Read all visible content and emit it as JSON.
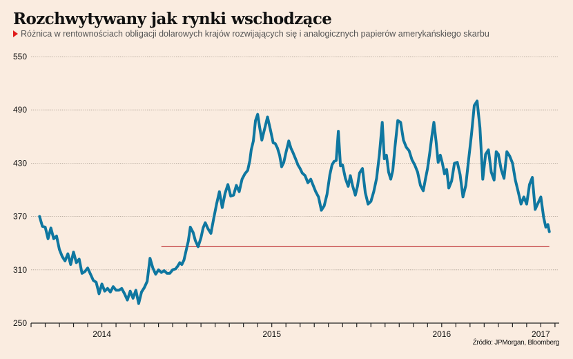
{
  "header": {
    "title": "Rozchwytywany jak rynki wschodzące",
    "subtitle": "Różnica w rentownościach obligacji dolarowych krajów rozwijających się i analogicznych papierów amerykańskiego skarbu",
    "source": "Źródło: JPMorgan, Bloomberg"
  },
  "colors": {
    "background": "#faece0",
    "line": "#0f77a0",
    "reference_line": "#c0393b",
    "marker": "#e01b1b"
  },
  "chart_data": {
    "type": "line",
    "title": "Rozchwytywany jak rynki wschodzące",
    "subtitle": "Różnica w rentownościach obligacji dolarowych krajów rozwijających się i analogicznych papierów amerykańskiego skarbu",
    "xlabel": "",
    "ylabel": "",
    "ylim": [
      250,
      550
    ],
    "yticks": [
      250,
      310,
      370,
      430,
      490,
      550
    ],
    "ytick_labels": [
      "250",
      "310",
      "370",
      "430",
      "490",
      "550"
    ],
    "xlim_months": [
      0,
      37.2
    ],
    "xticks_years": [
      {
        "label": "2014",
        "month": 5
      },
      {
        "label": "2015",
        "month": 17
      },
      {
        "label": "2016",
        "month": 29
      },
      {
        "label": "2017",
        "month": 36
      }
    ],
    "grid": "horizontal-dotted",
    "reference_line": {
      "value": 336,
      "from_month": 9.2,
      "to_month": 36.6
    },
    "series": [
      {
        "name": "Spread (pb)",
        "x_months": [
          0.6,
          0.8,
          1.0,
          1.2,
          1.4,
          1.6,
          1.8,
          2.0,
          2.2,
          2.4,
          2.6,
          2.8,
          3.0,
          3.2,
          3.4,
          3.6,
          3.8,
          4.0,
          4.2,
          4.4,
          4.6,
          4.8,
          5.0,
          5.2,
          5.4,
          5.6,
          5.8,
          6.0,
          6.2,
          6.4,
          6.6,
          6.8,
          7.0,
          7.2,
          7.4,
          7.6,
          7.8,
          8.0,
          8.2,
          8.4,
          8.6,
          8.8,
          9.0,
          9.2,
          9.4,
          9.6,
          9.8,
          10.0,
          10.2,
          10.35,
          10.5,
          10.65,
          10.8,
          11.0,
          11.1,
          11.25,
          11.45,
          11.6,
          11.8,
          12.0,
          12.15,
          12.3,
          12.5,
          12.7,
          12.9,
          13.1,
          13.3,
          13.5,
          13.7,
          13.9,
          14.1,
          14.3,
          14.5,
          14.7,
          14.9,
          15.1,
          15.3,
          15.45,
          15.55,
          15.7,
          15.85,
          16.0,
          16.15,
          16.3,
          16.5,
          16.7,
          16.9,
          17.1,
          17.25,
          17.4,
          17.55,
          17.7,
          17.85,
          18.0,
          18.2,
          18.35,
          18.5,
          18.7,
          18.85,
          19.0,
          19.15,
          19.35,
          19.55,
          19.75,
          19.95,
          20.1,
          20.3,
          20.5,
          20.7,
          20.9,
          21.1,
          21.25,
          21.4,
          21.55,
          21.7,
          21.85,
          22.0,
          22.2,
          22.4,
          22.55,
          22.7,
          22.9,
          23.05,
          23.2,
          23.4,
          23.6,
          23.8,
          24.0,
          24.2,
          24.4,
          24.6,
          24.8,
          24.95,
          25.1,
          25.25,
          25.4,
          25.55,
          25.7,
          25.9,
          26.1,
          26.3,
          26.5,
          26.7,
          26.9,
          27.1,
          27.3,
          27.5,
          27.7,
          27.85,
          28.0,
          28.15,
          28.3,
          28.45,
          28.6,
          28.75,
          28.9,
          29.05,
          29.2,
          29.35,
          29.5,
          29.7,
          29.9,
          30.1,
          30.3,
          30.5,
          30.7,
          30.9,
          31.1,
          31.3,
          31.5,
          31.7,
          31.9,
          32.1,
          32.3,
          32.5,
          32.7,
          32.85,
          33.0,
          33.2,
          33.4,
          33.6,
          33.8,
          34.0,
          34.2,
          34.4,
          34.6,
          34.8,
          35.0,
          35.2,
          35.4,
          35.6,
          35.8,
          36.0,
          36.2,
          36.35,
          36.5,
          36.6
        ],
        "values": [
          370,
          359,
          358,
          345,
          357,
          345,
          348,
          333,
          325,
          320,
          328,
          316,
          330,
          318,
          322,
          306,
          308,
          312,
          305,
          298,
          296,
          283,
          294,
          286,
          289,
          285,
          291,
          287,
          287,
          289,
          283,
          276,
          286,
          278,
          287,
          272,
          285,
          290,
          297,
          323,
          312,
          305,
          310,
          307,
          309,
          306,
          306,
          310,
          311,
          314,
          318,
          316,
          321,
          335,
          342,
          358,
          352,
          343,
          336,
          346,
          357,
          363,
          356,
          351,
          368,
          384,
          398,
          380,
          396,
          406,
          393,
          394,
          405,
          398,
          412,
          418,
          422,
          433,
          445,
          455,
          478,
          485,
          470,
          456,
          469,
          482,
          468,
          453,
          452,
          447,
          439,
          426,
          431,
          442,
          455,
          447,
          442,
          434,
          428,
          424,
          419,
          416,
          408,
          412,
          404,
          398,
          392,
          377,
          382,
          395,
          417,
          428,
          432,
          433,
          466,
          427,
          428,
          413,
          404,
          416,
          405,
          394,
          404,
          419,
          424,
          397,
          384,
          387,
          398,
          413,
          440,
          476,
          435,
          439,
          420,
          412,
          422,
          448,
          478,
          476,
          456,
          448,
          444,
          434,
          428,
          420,
          405,
          399,
          412,
          424,
          441,
          460,
          476,
          455,
          431,
          439,
          430,
          418,
          423,
          402,
          410,
          430,
          431,
          417,
          392,
          405,
          434,
          462,
          495,
          500,
          470,
          412,
          440,
          445,
          420,
          411,
          443,
          440,
          423,
          413,
          443,
          438,
          430,
          411,
          398,
          384,
          392,
          384,
          406,
          414,
          378,
          385,
          392,
          369,
          358,
          361,
          353,
          363,
          349,
          357,
          363,
          358,
          362,
          351,
          369,
          352,
          380,
          389,
          401,
          406,
          389,
          378,
          370,
          361,
          366,
          363,
          357,
          362,
          353,
          355,
          347,
          354,
          350,
          346,
          341,
          340,
          339,
          346,
          339
        ]
      }
    ]
  }
}
